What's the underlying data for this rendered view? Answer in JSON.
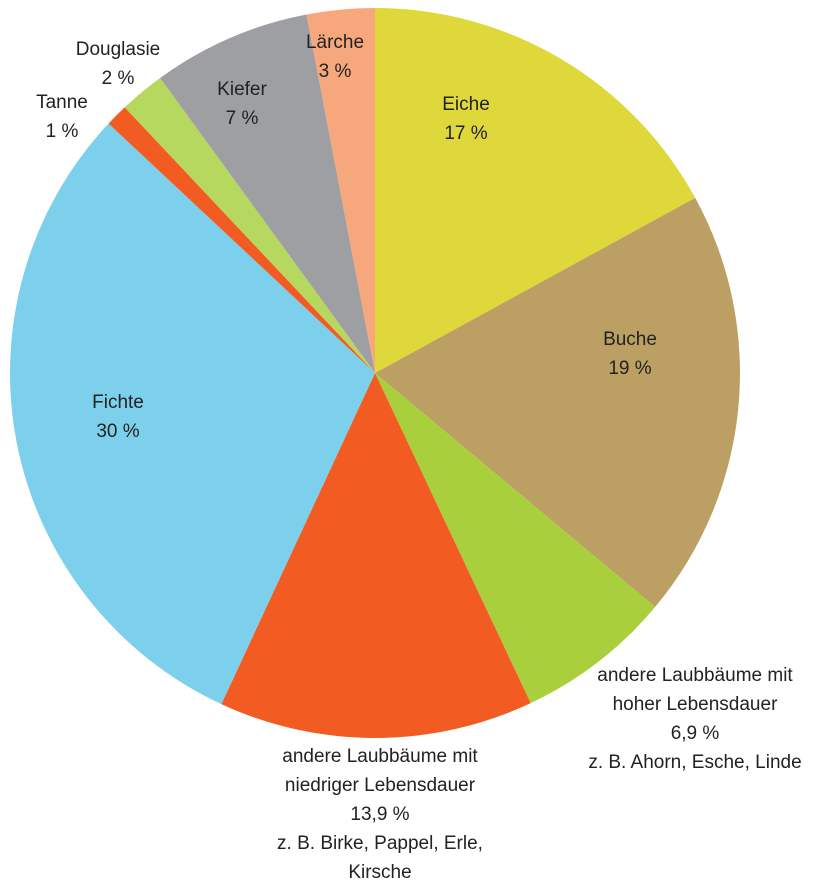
{
  "chart_data": {
    "type": "pie",
    "categories": [
      "Eiche",
      "Buche",
      "andere Laubbäume mit hoher Lebensdauer",
      "andere Laubbäume mit niedriger Lebensdauer",
      "Fichte",
      "Tanne",
      "Douglasie",
      "Kiefer",
      "Lärche"
    ],
    "values": [
      17,
      19,
      6.9,
      13.9,
      30,
      1,
      2,
      7,
      3
    ],
    "value_labels": [
      "17 %",
      "19 %",
      "6,9 %",
      "13,9 %",
      "30 %",
      "1 %",
      "2 %",
      "7 %",
      "3 %"
    ],
    "notes": [
      null,
      null,
      "z. B. Ahorn, Esche, Linde",
      "z. B. Birke, Pappel, Erle, Kirsche",
      null,
      null,
      null,
      null,
      null
    ],
    "colors": [
      "#dfd83a",
      "#bca063",
      "#a9cf3c",
      "#f25c22",
      "#7dd0eb",
      "#f25c22",
      "#b7d85e",
      "#9d9fa2",
      "#f6a77c"
    ]
  }
}
